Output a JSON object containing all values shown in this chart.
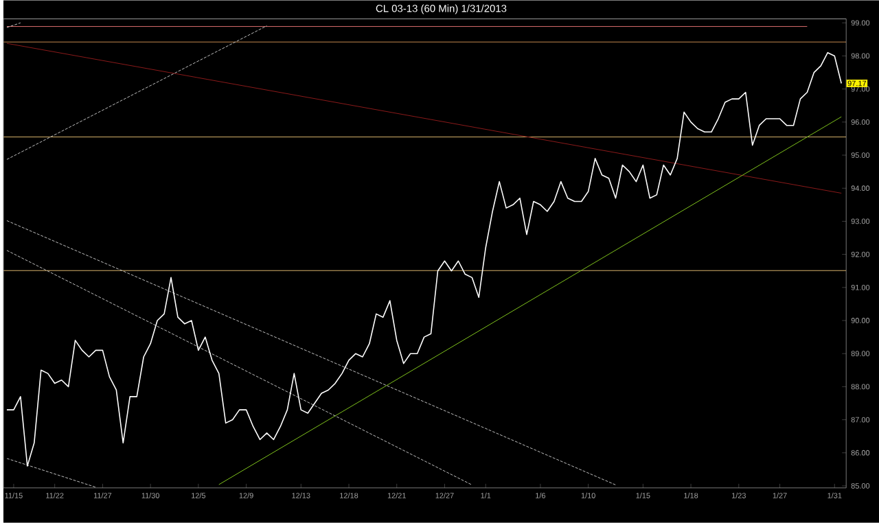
{
  "chart_data": {
    "type": "line",
    "title": "CL 03-13 (60 Min)  1/31/2013",
    "categories": [
      null,
      "11/15",
      null,
      null,
      null,
      null,
      null,
      "11/22",
      null,
      null,
      null,
      null,
      null,
      null,
      "11/27",
      null,
      null,
      null,
      null,
      null,
      null,
      "11/30",
      null,
      null,
      null,
      null,
      null,
      null,
      "12/5",
      null,
      null,
      null,
      null,
      null,
      null,
      "12/9",
      null,
      null,
      null,
      null,
      null,
      null,
      null,
      "12/13",
      null,
      null,
      null,
      null,
      null,
      null,
      "12/18",
      null,
      null,
      null,
      null,
      null,
      null,
      "12/21",
      null,
      null,
      null,
      null,
      null,
      null,
      "12/27",
      null,
      null,
      null,
      null,
      null,
      "1/1",
      null,
      null,
      null,
      null,
      null,
      null,
      null,
      "1/6",
      null,
      null,
      null,
      null,
      null,
      null,
      "1/10",
      null,
      null,
      null,
      null,
      null,
      null,
      null,
      "1/15",
      null,
      null,
      null,
      null,
      null,
      null,
      "1/18",
      null,
      null,
      null,
      null,
      null,
      null,
      "1/23",
      null,
      null,
      null,
      null,
      null,
      "1/27",
      null,
      null,
      null,
      null,
      null,
      null,
      null,
      "1/31",
      null
    ],
    "ylim": [
      84.94,
      99.12
    ],
    "yticks": [
      {
        "value": 85,
        "label": "85.00"
      },
      {
        "value": 86,
        "label": "86.00"
      },
      {
        "value": 87,
        "label": "87.00"
      },
      {
        "value": 88,
        "label": "88.00"
      },
      {
        "value": 89,
        "label": "89.00"
      },
      {
        "value": 90,
        "label": "90.00"
      },
      {
        "value": 91,
        "label": "91.00"
      },
      {
        "value": 92,
        "label": "92.00"
      },
      {
        "value": 93,
        "label": "93.00"
      },
      {
        "value": 94,
        "label": "94.00"
      },
      {
        "value": 95,
        "label": "95.00"
      },
      {
        "value": 96,
        "label": "96.00"
      },
      {
        "value": 97,
        "label": "97.00"
      },
      {
        "value": 98,
        "label": "98.00"
      },
      {
        "value": 99,
        "label": "99.00"
      }
    ],
    "annotations": [
      {
        "text": "97.17",
        "y": 97.17
      }
    ],
    "ref_lines": [
      {
        "axis": "y",
        "value": 98.42,
        "color": "#f0a860"
      },
      {
        "axis": "y",
        "value": 95.55,
        "color": "#d9b36c"
      },
      {
        "axis": "y",
        "value": 91.51,
        "color": "#d9b36c"
      }
    ],
    "series": [
      {
        "color": "#ffffff",
        "line_style": "solid",
        "values": [
          87.3,
          87.3,
          87.7,
          85.6,
          86.3,
          88.5,
          88.4,
          88.1,
          88.2,
          88.0,
          89.4,
          89.1,
          88.9,
          89.1,
          89.1,
          88.3,
          87.9,
          86.3,
          87.7,
          87.7,
          88.9,
          89.3,
          90.0,
          90.2,
          91.3,
          90.1,
          89.9,
          90.0,
          89.1,
          89.5,
          88.8,
          88.4,
          86.9,
          87.0,
          87.3,
          87.3,
          86.8,
          86.4,
          86.6,
          86.4,
          86.8,
          87.3,
          88.4,
          87.3,
          87.2,
          87.5,
          87.8,
          87.9,
          88.1,
          88.4,
          88.8,
          89.0,
          88.9,
          89.3,
          90.2,
          90.1,
          90.6,
          89.4,
          88.7,
          89.0,
          89.0,
          89.5,
          89.6,
          91.5,
          91.8,
          91.5,
          91.8,
          91.4,
          91.3,
          90.7,
          92.2,
          93.3,
          94.2,
          93.4,
          93.5,
          93.7,
          92.6,
          93.6,
          93.5,
          93.3,
          93.6,
          94.2,
          93.7,
          93.6,
          93.6,
          93.9,
          94.9,
          94.4,
          94.3,
          93.7,
          94.7,
          94.5,
          94.2,
          94.7,
          93.7,
          93.8,
          94.7,
          94.4,
          94.9,
          96.3,
          96.0,
          95.8,
          95.7,
          95.7,
          96.1,
          96.6,
          96.7,
          96.7,
          96.9,
          95.3,
          95.9,
          96.1,
          96.1,
          96.1,
          95.9,
          95.9,
          96.7,
          96.9,
          97.5,
          97.7,
          98.1,
          98.0,
          97.17
        ]
      },
      {
        "color": "#8b1a1a",
        "line_style": "solid",
        "values": [
          98.38,
          null,
          null,
          null,
          null,
          null,
          null,
          null,
          null,
          null,
          null,
          null,
          null,
          null,
          null,
          null,
          null,
          null,
          null,
          null,
          null,
          null,
          null,
          null,
          null,
          null,
          null,
          null,
          null,
          null,
          null,
          null,
          null,
          null,
          null,
          null,
          null,
          null,
          null,
          null,
          null,
          null,
          null,
          null,
          null,
          null,
          null,
          null,
          null,
          null,
          null,
          null,
          null,
          null,
          null,
          null,
          null,
          null,
          null,
          null,
          null,
          null,
          null,
          null,
          null,
          null,
          null,
          null,
          null,
          null,
          null,
          null,
          null,
          null,
          null,
          null,
          null,
          null,
          null,
          null,
          null,
          null,
          null,
          null,
          null,
          null,
          null,
          null,
          null,
          null,
          null,
          null,
          null,
          null,
          null,
          null,
          null,
          null,
          null,
          null,
          null,
          null,
          null,
          null,
          null,
          null,
          null,
          null,
          null,
          null,
          null,
          null,
          null,
          null,
          null,
          null,
          null,
          null,
          null,
          null,
          null,
          null,
          93.85
        ]
      },
      {
        "color": "#7fc31c",
        "line_style": "solid",
        "values": [
          null,
          null,
          null,
          null,
          null,
          null,
          null,
          null,
          null,
          null,
          null,
          null,
          null,
          null,
          null,
          null,
          null,
          null,
          null,
          null,
          null,
          null,
          null,
          null,
          null,
          null,
          null,
          null,
          null,
          null,
          null,
          85.04,
          null,
          null,
          null,
          null,
          null,
          null,
          null,
          null,
          null,
          null,
          null,
          null,
          null,
          null,
          null,
          null,
          null,
          null,
          null,
          null,
          null,
          null,
          null,
          null,
          null,
          null,
          null,
          null,
          null,
          null,
          null,
          null,
          null,
          null,
          null,
          null,
          null,
          null,
          null,
          null,
          null,
          null,
          null,
          null,
          null,
          null,
          null,
          null,
          null,
          null,
          null,
          null,
          null,
          null,
          null,
          null,
          null,
          null,
          null,
          null,
          null,
          null,
          null,
          null,
          null,
          null,
          null,
          null,
          null,
          null,
          null,
          null,
          null,
          null,
          null,
          null,
          null,
          null,
          null,
          null,
          null,
          null,
          null,
          null,
          null,
          null,
          null,
          null,
          null,
          null,
          96.16
        ]
      },
      {
        "color": "#e07070",
        "line_style": "solid",
        "values": [
          98.89,
          null,
          null,
          null,
          null,
          null,
          null,
          null,
          null,
          null,
          null,
          null,
          null,
          null,
          null,
          null,
          null,
          null,
          null,
          null,
          null,
          null,
          null,
          null,
          null,
          null,
          null,
          null,
          null,
          null,
          null,
          null,
          null,
          null,
          null,
          null,
          null,
          null,
          null,
          null,
          null,
          null,
          null,
          null,
          null,
          null,
          null,
          null,
          null,
          null,
          null,
          null,
          null,
          null,
          null,
          null,
          null,
          null,
          null,
          null,
          null,
          null,
          null,
          null,
          null,
          null,
          null,
          null,
          null,
          null,
          null,
          null,
          null,
          null,
          null,
          null,
          null,
          null,
          null,
          null,
          null,
          null,
          null,
          null,
          null,
          null,
          null,
          null,
          null,
          null,
          null,
          null,
          null,
          null,
          null,
          null,
          null,
          null,
          null,
          null,
          null,
          null,
          null,
          null,
          null,
          null,
          null,
          null,
          null,
          null,
          null,
          null,
          null,
          null,
          null,
          null,
          null,
          98.89,
          null,
          null,
          null,
          null,
          null
        ]
      },
      {
        "color": "#c0c0c0",
        "line_style": "dashed",
        "values": [
          94.87,
          null,
          null,
          null,
          null,
          null,
          null,
          null,
          null,
          null,
          null,
          null,
          null,
          null,
          null,
          null,
          null,
          null,
          null,
          null,
          null,
          null,
          null,
          null,
          null,
          null,
          null,
          null,
          null,
          null,
          null,
          null,
          null,
          null,
          null,
          null,
          null,
          null,
          98.91,
          null,
          null,
          null,
          null,
          null,
          null,
          null,
          null,
          null,
          null,
          null,
          null,
          null,
          null,
          null,
          null,
          null,
          null,
          null,
          null,
          null,
          null,
          null,
          null,
          null,
          null,
          null,
          null,
          null,
          null,
          null,
          null,
          null,
          null,
          null,
          null,
          null,
          null,
          null,
          null,
          null,
          null,
          null,
          null,
          null,
          null,
          null,
          null,
          null,
          null,
          null,
          null,
          null,
          null,
          null,
          null,
          null,
          null,
          null,
          null,
          null,
          null,
          null,
          null,
          null,
          null,
          null,
          null,
          null,
          null,
          null,
          null,
          null,
          null,
          null,
          null,
          null,
          null,
          null,
          null,
          null,
          null,
          null,
          null
        ]
      },
      {
        "color": "#c0c0c0",
        "line_style": "dashed",
        "values": [
          98.86,
          null,
          99.0,
          null,
          null,
          null,
          null,
          null,
          null,
          null,
          null,
          null,
          null,
          null,
          null,
          null,
          null,
          null,
          null,
          null,
          null,
          null,
          null,
          null,
          null,
          null,
          null,
          null,
          null,
          null,
          null,
          null,
          null,
          null,
          null,
          null,
          null,
          null,
          null,
          null,
          null,
          null,
          null,
          null,
          null,
          null,
          null,
          null,
          null,
          null,
          null,
          null,
          null,
          null,
          null,
          null,
          null,
          null,
          null,
          null,
          null,
          null,
          null,
          null,
          null,
          null,
          null,
          null,
          null,
          null,
          null,
          null,
          null,
          null,
          null,
          null,
          null,
          null,
          null,
          null,
          null,
          null,
          null,
          null,
          null,
          null,
          null,
          null,
          null,
          null,
          null,
          null,
          null,
          null,
          null,
          null,
          null,
          null,
          null,
          null,
          null,
          null,
          null,
          null,
          null,
          null,
          null,
          null,
          null,
          null,
          null,
          null,
          null,
          null,
          null,
          null,
          null,
          null,
          null,
          null,
          null,
          null,
          null
        ]
      },
      {
        "color": "#c0c0c0",
        "line_style": "dashed",
        "values": [
          93.02,
          null,
          null,
          null,
          null,
          null,
          null,
          null,
          null,
          null,
          null,
          null,
          null,
          null,
          null,
          null,
          null,
          null,
          null,
          null,
          null,
          null,
          null,
          null,
          null,
          null,
          null,
          null,
          null,
          null,
          null,
          null,
          null,
          null,
          null,
          null,
          null,
          null,
          null,
          null,
          null,
          null,
          null,
          null,
          null,
          null,
          null,
          null,
          null,
          null,
          null,
          null,
          null,
          null,
          null,
          null,
          null,
          null,
          null,
          null,
          null,
          null,
          null,
          null,
          null,
          null,
          null,
          null,
          null,
          null,
          null,
          null,
          null,
          null,
          null,
          null,
          null,
          null,
          null,
          null,
          null,
          null,
          null,
          null,
          null,
          null,
          null,
          null,
          null,
          85.03,
          null,
          null,
          null,
          null,
          null,
          null,
          null,
          null,
          null,
          null,
          null,
          null,
          null,
          null,
          null,
          null,
          null,
          null,
          null,
          null,
          null,
          null,
          null,
          null,
          null,
          null,
          null,
          null,
          null,
          null,
          null,
          null,
          null
        ]
      },
      {
        "color": "#c0c0c0",
        "line_style": "dashed",
        "values": [
          92.12,
          null,
          null,
          null,
          null,
          null,
          null,
          null,
          null,
          null,
          null,
          null,
          null,
          null,
          null,
          null,
          null,
          null,
          null,
          null,
          null,
          null,
          null,
          null,
          null,
          null,
          null,
          null,
          null,
          null,
          null,
          null,
          null,
          null,
          null,
          null,
          null,
          null,
          null,
          null,
          null,
          null,
          null,
          null,
          null,
          null,
          null,
          null,
          null,
          null,
          null,
          null,
          null,
          null,
          null,
          null,
          null,
          null,
          null,
          null,
          null,
          null,
          null,
          null,
          null,
          null,
          null,
          null,
          85.03,
          null,
          null,
          null,
          null,
          null,
          null,
          null,
          null,
          null,
          null,
          null,
          null,
          null,
          null,
          null,
          null,
          null,
          null,
          null,
          null,
          null,
          null,
          null,
          null,
          null,
          null,
          null,
          null,
          null,
          null,
          null,
          null,
          null,
          null,
          null,
          null,
          null,
          null,
          null,
          null,
          null,
          null,
          null,
          null,
          null,
          null,
          null,
          null,
          null,
          null,
          null,
          null,
          null,
          null
        ]
      },
      {
        "color": "#c0c0c0",
        "line_style": "dashed",
        "values": [
          85.83,
          null,
          null,
          null,
          null,
          null,
          null,
          null,
          null,
          null,
          null,
          null,
          null,
          84.96,
          null,
          null,
          null,
          null,
          null,
          null,
          null,
          null,
          null,
          null,
          null,
          null,
          null,
          null,
          null,
          null,
          null,
          null,
          null,
          null,
          null,
          null,
          null,
          null,
          null,
          null,
          null,
          null,
          null,
          null,
          null,
          null,
          null,
          null,
          null,
          null,
          null,
          null,
          null,
          null,
          null,
          null,
          null,
          null,
          null,
          null,
          null,
          null,
          null,
          null,
          null,
          null,
          null,
          null,
          null,
          null,
          null,
          null,
          null,
          null,
          null,
          null,
          null,
          null,
          null,
          null,
          null,
          null,
          null,
          null,
          null,
          null,
          null,
          null,
          null,
          null,
          null,
          null,
          null,
          null,
          null,
          null,
          null,
          null,
          null,
          null,
          null,
          null,
          null,
          null,
          null,
          null,
          null,
          null,
          null,
          null,
          null,
          null,
          null,
          null,
          null,
          null,
          null,
          null,
          null,
          null,
          null,
          null,
          null
        ]
      }
    ]
  }
}
